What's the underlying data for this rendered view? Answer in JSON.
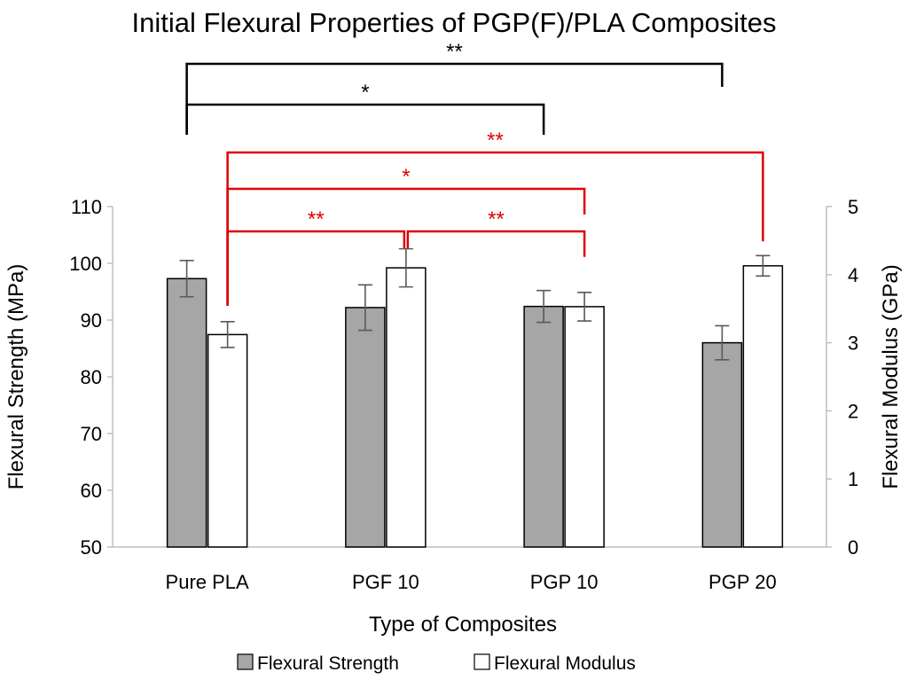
{
  "chart_data": {
    "type": "bar",
    "title": "Initial Flexural Properties of PGP(F)/PLA Composites",
    "xlabel": "Type of Composites",
    "ylabel": "Flexural Strength (MPa)",
    "y2label": "Flexural Modulus (GPa)",
    "categories": [
      "Pure PLA",
      "PGF 10",
      "PGP 10",
      "PGP 20"
    ],
    "ylim": [
      50,
      110
    ],
    "yticks": [
      "50",
      "60",
      "70",
      "80",
      "90",
      "100",
      "110"
    ],
    "y2lim": [
      0,
      5
    ],
    "y2ticks": [
      "0",
      "1",
      "2",
      "3",
      "4",
      "5"
    ],
    "series": [
      {
        "name": "Flexural Strength",
        "axis": "left",
        "values": [
          97.3,
          92.2,
          92.4,
          86.0
        ],
        "errors": [
          3.2,
          4.0,
          2.8,
          3.0
        ],
        "color": "#a6a6a6"
      },
      {
        "name": "Flexural Modulus",
        "axis": "right",
        "values": [
          3.12,
          4.1,
          3.53,
          4.13
        ],
        "errors": [
          0.19,
          0.28,
          0.21,
          0.15
        ],
        "color": "#ffffff"
      }
    ],
    "grid": false,
    "legend_position": "bottom",
    "significance": [
      {
        "series": "Flexural Strength",
        "from": 0,
        "to": 3,
        "label": "**",
        "color": "#000000"
      },
      {
        "series": "Flexural Strength",
        "from": 0,
        "to": 2,
        "label": "*",
        "color": "#000000"
      },
      {
        "series": "Flexural Modulus",
        "from": 0,
        "to": 3,
        "label": "**",
        "color": "#e00000"
      },
      {
        "series": "Flexural Modulus",
        "from": 0,
        "to": 2,
        "label": "*",
        "color": "#e00000"
      },
      {
        "series": "Flexural Modulus",
        "from": 0,
        "to": 1,
        "label": "**",
        "color": "#e00000"
      },
      {
        "series": "Flexural Modulus",
        "from": 1,
        "to": 2,
        "label": "**",
        "color": "#e00000"
      }
    ]
  }
}
